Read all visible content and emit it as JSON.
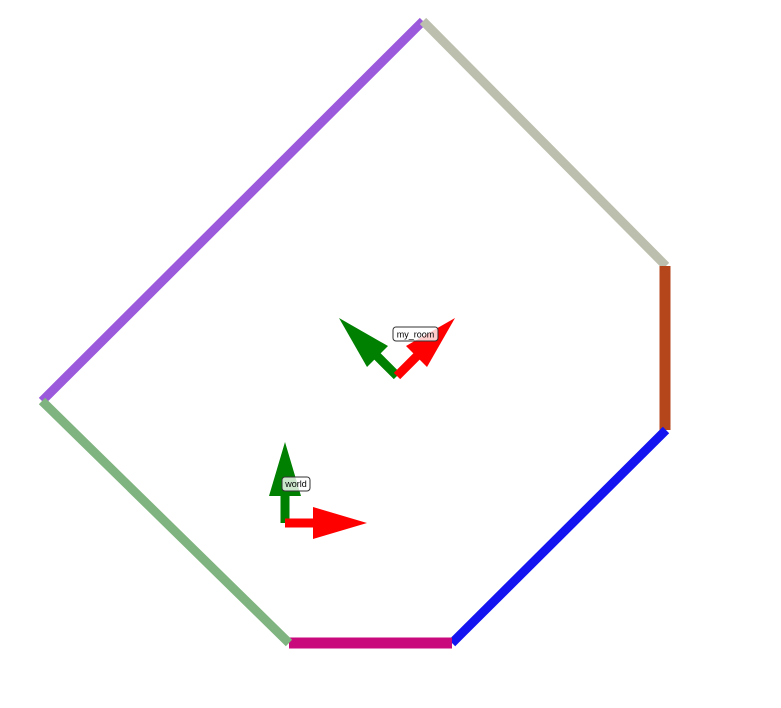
{
  "frames": {
    "world": {
      "label": "world"
    },
    "my_room": {
      "label": "my_room"
    }
  },
  "colors": {
    "x_axis": "#ff0000",
    "y_axis": "#008000",
    "wall_top_left": "#9b59db",
    "wall_top_right": "#bcbfad",
    "wall_right": "#b5451b",
    "wall_bottom_right": "#1414f0",
    "wall_bottom": "#c80a7d",
    "wall_bottom_left": "#7fb37f"
  }
}
